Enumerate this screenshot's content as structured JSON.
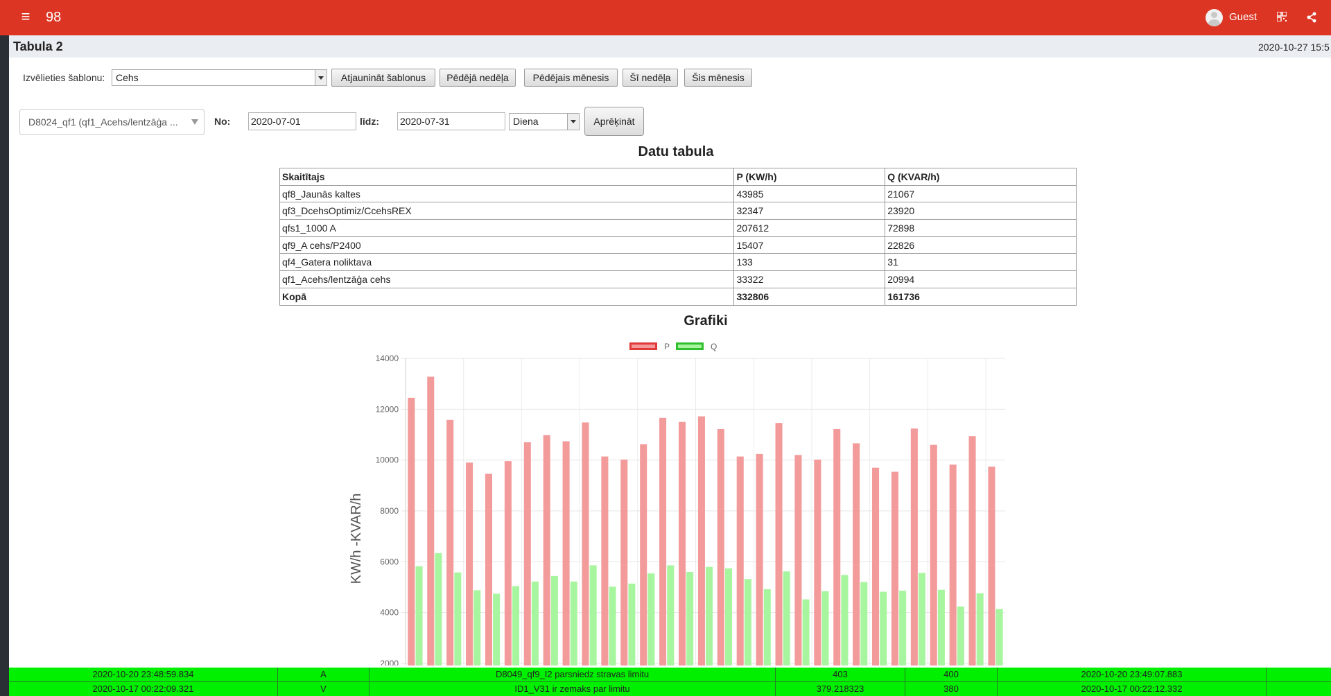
{
  "header": {
    "app_number": "98",
    "user_name": "Guest"
  },
  "page": {
    "title": "Tabula 2",
    "timestamp": "2020-10-27 15:5"
  },
  "template": {
    "label": "Izvēlieties šablonu:",
    "selected": "Cehs",
    "buttons": [
      "Atjaunināt šablonus",
      "Pēdējā nedēļa",
      "Pēdējais mēnesis",
      "Šī nedēļa",
      "Šis mēnesis"
    ]
  },
  "filters": {
    "meter": "D8024_qf1 (qf1_Acehs/lentzāģa ...",
    "from_label": "No:",
    "from_value": "2020-07-01",
    "to_label": "līdz:",
    "to_value": "2020-07-31",
    "period": "Diena",
    "calc_button": "Aprēķināt"
  },
  "table": {
    "title": "Datu tabula",
    "headers": [
      "Skaitītajs",
      "P (KW/h)",
      "Q (KVAR/h)"
    ],
    "rows": [
      [
        "qf8_Jaunās kaltes",
        "43985",
        "21067"
      ],
      [
        "qf3_DcehsOptimiz/CcehsREX",
        "32347",
        "23920"
      ],
      [
        "qfs1_1000 A",
        "207612",
        "72898"
      ],
      [
        "qf9_A cehs/P2400",
        "15407",
        "22826"
      ],
      [
        "qf4_Gatera noliktava",
        "133",
        "31"
      ],
      [
        "qf1_Acehs/lentzāģa cehs",
        "33322",
        "20994"
      ]
    ],
    "total": [
      "Kopā",
      "332806",
      "161736"
    ]
  },
  "chart_data": {
    "type": "bar",
    "title": "Grafiki",
    "ylabel": "KW/h -KVAR/h",
    "ylim": [
      2000,
      14000
    ],
    "yticks": [
      2000,
      4000,
      6000,
      8000,
      10000,
      12000,
      14000
    ],
    "grid": true,
    "legend": "top-center",
    "series": [
      {
        "name": "P",
        "color": "#f39a9a",
        "border": "#e03a3a",
        "values": [
          12450,
          13280,
          11580,
          9900,
          9460,
          9960,
          10700,
          10980,
          10740,
          11480,
          10140,
          10020,
          10620,
          11660,
          11500,
          11720,
          11220,
          10140,
          10240,
          11460,
          10200,
          10020,
          11220,
          10660,
          9700,
          9540,
          11240,
          10600,
          9820,
          10940,
          9740
        ]
      },
      {
        "name": "Q",
        "color": "#a8f5a0",
        "border": "#2fbf2f",
        "values": [
          5820,
          6340,
          5580,
          4880,
          4740,
          5040,
          5220,
          5440,
          5220,
          5860,
          5020,
          5140,
          5540,
          5860,
          5600,
          5800,
          5740,
          5320,
          4920,
          5620,
          4520,
          4840,
          5480,
          5200,
          4820,
          4860,
          5560,
          4900,
          4240,
          4760,
          4140
        ]
      }
    ]
  },
  "status": {
    "rows": [
      [
        "2020-10-20 23:48:59.834",
        "A",
        "D8049_qf9_I2 parsniedz stravas limitu",
        "403",
        "400",
        "2020-10-20 23:49:07.883"
      ],
      [
        "2020-10-17 00:22:09.321",
        "V",
        "ID1_V31 ir zemaks par limitu",
        "379.218323",
        "380",
        "2020-10-17 00:22:12.332"
      ]
    ]
  }
}
